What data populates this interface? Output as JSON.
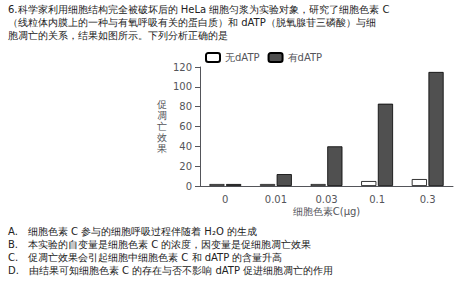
{
  "chart_data": {
    "type": "bar",
    "categories": [
      "0",
      "0.01",
      "0.03",
      "0.1",
      "0.3"
    ],
    "series": [
      {
        "name": "无dATP",
        "color": "#ffffff",
        "values": [
          2,
          2,
          2,
          5,
          7
        ]
      },
      {
        "name": "有dATP",
        "color": "#505050",
        "values": [
          2,
          12,
          40,
          83,
          115
        ]
      }
    ],
    "xlabel": "细胞色素C(μg)",
    "ylabel": "促\n凋\n亡\n效\n果",
    "ylim": [
      0,
      120
    ],
    "yticks": [
      0,
      20,
      40,
      60,
      80,
      100,
      120
    ],
    "grid": false,
    "legend": "upper left",
    "annotations": [
      [
        "6.科学家利用细胞结构完全被破坏后的 HeLa 细胞匀浆为实验对象，研究了细胞色素 C",
        "（线粒体内膜上的一种与有氧呼吸有关的蛋白质）和 dATP（脱氧腺苷三磷酸）与细",
        "胞凋亡的关系，结果如图所示。下列分析正确的是"
      ],
      [
        "A.　细胞色素 C 参与的细胞呼吸过程伴随着 H₂O 的生成",
        "B.　本实验的自变量是细胞色素 C 的浓度，因变量是促细胞凋亡效果",
        "C.　促凋亡效果会引起细胞中细胞色素 C 和 dATP 的含量升高",
        "D.　由结果可知细胞色素 C 的存在与否不影响 dATP 促进细胞凋亡的作用"
      ]
    ]
  }
}
